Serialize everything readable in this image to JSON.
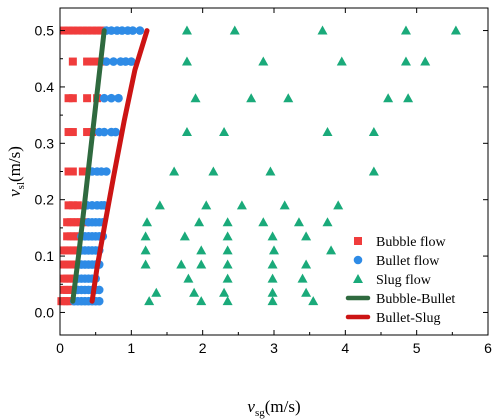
{
  "chart_data": {
    "type": "scatter",
    "xlabel": {
      "main": "v",
      "sub": "sg",
      "unit": "(m/s)"
    },
    "ylabel": {
      "main": "v",
      "sub": "sl",
      "unit": "(m/s)"
    },
    "xlim": [
      0,
      6
    ],
    "ylim": [
      -0.04,
      0.54
    ],
    "xticks": [
      "0",
      "1",
      "2",
      "3",
      "4",
      "5",
      "6"
    ],
    "yticks": [
      "0.0",
      "0.1",
      "0.2",
      "0.3",
      "0.4",
      "0.5"
    ],
    "grid": false,
    "legend_position": "lower-right",
    "series": [
      {
        "name": "Bubble flow",
        "marker": "square",
        "color": "#f03c3c",
        "points": [
          [
            0.05,
            0.5
          ],
          [
            0.12,
            0.5
          ],
          [
            0.18,
            0.5
          ],
          [
            0.25,
            0.5
          ],
          [
            0.32,
            0.5
          ],
          [
            0.38,
            0.5
          ],
          [
            0.45,
            0.5
          ],
          [
            0.52,
            0.5
          ],
          [
            0.58,
            0.5
          ],
          [
            0.18,
            0.445
          ],
          [
            0.38,
            0.445
          ],
          [
            0.48,
            0.445
          ],
          [
            0.58,
            0.445
          ],
          [
            0.12,
            0.38
          ],
          [
            0.18,
            0.38
          ],
          [
            0.38,
            0.38
          ],
          [
            0.52,
            0.38
          ],
          [
            0.12,
            0.32
          ],
          [
            0.18,
            0.32
          ],
          [
            0.38,
            0.32
          ],
          [
            0.45,
            0.32
          ],
          [
            0.12,
            0.25
          ],
          [
            0.18,
            0.25
          ],
          [
            0.32,
            0.25
          ],
          [
            0.38,
            0.25
          ],
          [
            0.12,
            0.19
          ],
          [
            0.18,
            0.19
          ],
          [
            0.25,
            0.19
          ],
          [
            0.1,
            0.16
          ],
          [
            0.15,
            0.16
          ],
          [
            0.2,
            0.16
          ],
          [
            0.25,
            0.16
          ],
          [
            0.3,
            0.16
          ],
          [
            0.35,
            0.16
          ],
          [
            0.1,
            0.135
          ],
          [
            0.15,
            0.135
          ],
          [
            0.2,
            0.135
          ],
          [
            0.25,
            0.135
          ],
          [
            0.05,
            0.11
          ],
          [
            0.1,
            0.11
          ],
          [
            0.15,
            0.11
          ],
          [
            0.2,
            0.11
          ],
          [
            0.25,
            0.11
          ],
          [
            0.05,
            0.085
          ],
          [
            0.1,
            0.085
          ],
          [
            0.15,
            0.085
          ],
          [
            0.2,
            0.085
          ],
          [
            0.25,
            0.085
          ],
          [
            0.05,
            0.06
          ],
          [
            0.1,
            0.06
          ],
          [
            0.15,
            0.06
          ],
          [
            0.2,
            0.06
          ],
          [
            0.05,
            0.04
          ],
          [
            0.1,
            0.04
          ],
          [
            0.15,
            0.04
          ],
          [
            0.2,
            0.04
          ],
          [
            0.02,
            0.02
          ],
          [
            0.06,
            0.02
          ],
          [
            0.1,
            0.02
          ],
          [
            0.14,
            0.02
          ]
        ]
      },
      {
        "name": "Bullet flow",
        "marker": "circle",
        "color": "#2e8be6",
        "points": [
          [
            0.65,
            0.5
          ],
          [
            0.72,
            0.5
          ],
          [
            0.8,
            0.5
          ],
          [
            0.87,
            0.5
          ],
          [
            0.95,
            0.5
          ],
          [
            1.02,
            0.5
          ],
          [
            1.12,
            0.5
          ],
          [
            0.65,
            0.445
          ],
          [
            0.75,
            0.445
          ],
          [
            0.85,
            0.445
          ],
          [
            0.92,
            0.445
          ],
          [
            1.0,
            0.445
          ],
          [
            0.62,
            0.38
          ],
          [
            0.72,
            0.38
          ],
          [
            0.82,
            0.38
          ],
          [
            0.55,
            0.32
          ],
          [
            0.62,
            0.32
          ],
          [
            0.72,
            0.32
          ],
          [
            0.78,
            0.32
          ],
          [
            0.45,
            0.25
          ],
          [
            0.52,
            0.25
          ],
          [
            0.58,
            0.25
          ],
          [
            0.65,
            0.25
          ],
          [
            0.38,
            0.19
          ],
          [
            0.45,
            0.19
          ],
          [
            0.52,
            0.19
          ],
          [
            0.58,
            0.19
          ],
          [
            0.62,
            0.19
          ],
          [
            0.4,
            0.16
          ],
          [
            0.45,
            0.16
          ],
          [
            0.5,
            0.16
          ],
          [
            0.55,
            0.16
          ],
          [
            0.6,
            0.16
          ],
          [
            0.3,
            0.135
          ],
          [
            0.35,
            0.135
          ],
          [
            0.4,
            0.135
          ],
          [
            0.45,
            0.135
          ],
          [
            0.5,
            0.135
          ],
          [
            0.55,
            0.135
          ],
          [
            0.6,
            0.135
          ],
          [
            0.3,
            0.11
          ],
          [
            0.35,
            0.11
          ],
          [
            0.4,
            0.11
          ],
          [
            0.45,
            0.11
          ],
          [
            0.5,
            0.11
          ],
          [
            0.55,
            0.11
          ],
          [
            0.3,
            0.085
          ],
          [
            0.35,
            0.085
          ],
          [
            0.4,
            0.085
          ],
          [
            0.45,
            0.085
          ],
          [
            0.5,
            0.085
          ],
          [
            0.55,
            0.085
          ],
          [
            0.25,
            0.06
          ],
          [
            0.3,
            0.06
          ],
          [
            0.35,
            0.06
          ],
          [
            0.4,
            0.06
          ],
          [
            0.45,
            0.06
          ],
          [
            0.5,
            0.06
          ],
          [
            0.25,
            0.04
          ],
          [
            0.3,
            0.04
          ],
          [
            0.35,
            0.04
          ],
          [
            0.4,
            0.04
          ],
          [
            0.45,
            0.04
          ],
          [
            0.5,
            0.04
          ],
          [
            0.55,
            0.04
          ],
          [
            0.2,
            0.02
          ],
          [
            0.25,
            0.02
          ],
          [
            0.3,
            0.02
          ],
          [
            0.35,
            0.02
          ],
          [
            0.4,
            0.02
          ],
          [
            0.45,
            0.02
          ],
          [
            0.5,
            0.02
          ],
          [
            0.55,
            0.02
          ]
        ]
      },
      {
        "name": "Slug flow",
        "marker": "triangle",
        "color": "#1aaa7a",
        "points": [
          [
            1.78,
            0.5
          ],
          [
            2.45,
            0.5
          ],
          [
            3.68,
            0.5
          ],
          [
            4.85,
            0.5
          ],
          [
            5.55,
            0.5
          ],
          [
            1.78,
            0.445
          ],
          [
            2.85,
            0.445
          ],
          [
            3.95,
            0.445
          ],
          [
            4.85,
            0.445
          ],
          [
            5.12,
            0.445
          ],
          [
            1.9,
            0.38
          ],
          [
            2.68,
            0.38
          ],
          [
            3.2,
            0.38
          ],
          [
            4.6,
            0.38
          ],
          [
            4.88,
            0.38
          ],
          [
            1.78,
            0.32
          ],
          [
            2.3,
            0.32
          ],
          [
            3.75,
            0.32
          ],
          [
            4.4,
            0.32
          ],
          [
            1.6,
            0.25
          ],
          [
            2.15,
            0.25
          ],
          [
            2.95,
            0.25
          ],
          [
            4.4,
            0.25
          ],
          [
            1.4,
            0.19
          ],
          [
            2.05,
            0.19
          ],
          [
            2.55,
            0.19
          ],
          [
            3.15,
            0.19
          ],
          [
            3.9,
            0.19
          ],
          [
            1.22,
            0.16
          ],
          [
            1.95,
            0.16
          ],
          [
            2.35,
            0.16
          ],
          [
            2.85,
            0.16
          ],
          [
            3.35,
            0.16
          ],
          [
            3.75,
            0.16
          ],
          [
            1.2,
            0.135
          ],
          [
            1.75,
            0.135
          ],
          [
            2.35,
            0.135
          ],
          [
            2.98,
            0.135
          ],
          [
            3.45,
            0.135
          ],
          [
            1.2,
            0.11
          ],
          [
            1.98,
            0.11
          ],
          [
            2.35,
            0.11
          ],
          [
            3.0,
            0.11
          ],
          [
            3.8,
            0.11
          ],
          [
            1.2,
            0.085
          ],
          [
            1.7,
            0.085
          ],
          [
            1.98,
            0.085
          ],
          [
            2.35,
            0.085
          ],
          [
            2.98,
            0.085
          ],
          [
            3.45,
            0.085
          ],
          [
            1.8,
            0.06
          ],
          [
            2.35,
            0.06
          ],
          [
            2.98,
            0.06
          ],
          [
            3.4,
            0.06
          ],
          [
            1.35,
            0.035
          ],
          [
            1.88,
            0.035
          ],
          [
            2.3,
            0.035
          ],
          [
            2.98,
            0.035
          ],
          [
            3.45,
            0.035
          ],
          [
            1.25,
            0.02
          ],
          [
            1.98,
            0.02
          ],
          [
            2.35,
            0.02
          ],
          [
            2.98,
            0.02
          ],
          [
            3.55,
            0.02
          ]
        ]
      },
      {
        "name": "Bubble-Bullet",
        "type": "line",
        "color": "#2f6a3f",
        "points": [
          [
            0.18,
            0.02
          ],
          [
            0.26,
            0.1
          ],
          [
            0.35,
            0.2
          ],
          [
            0.44,
            0.3
          ],
          [
            0.53,
            0.4
          ],
          [
            0.62,
            0.5
          ]
        ]
      },
      {
        "name": "Bullet-Slug",
        "type": "line",
        "color": "#cc1414",
        "points": [
          [
            0.45,
            0.02
          ],
          [
            0.52,
            0.08
          ],
          [
            0.62,
            0.15
          ],
          [
            0.75,
            0.24
          ],
          [
            0.9,
            0.34
          ],
          [
            1.05,
            0.43
          ],
          [
            1.22,
            0.5
          ]
        ]
      }
    ]
  }
}
